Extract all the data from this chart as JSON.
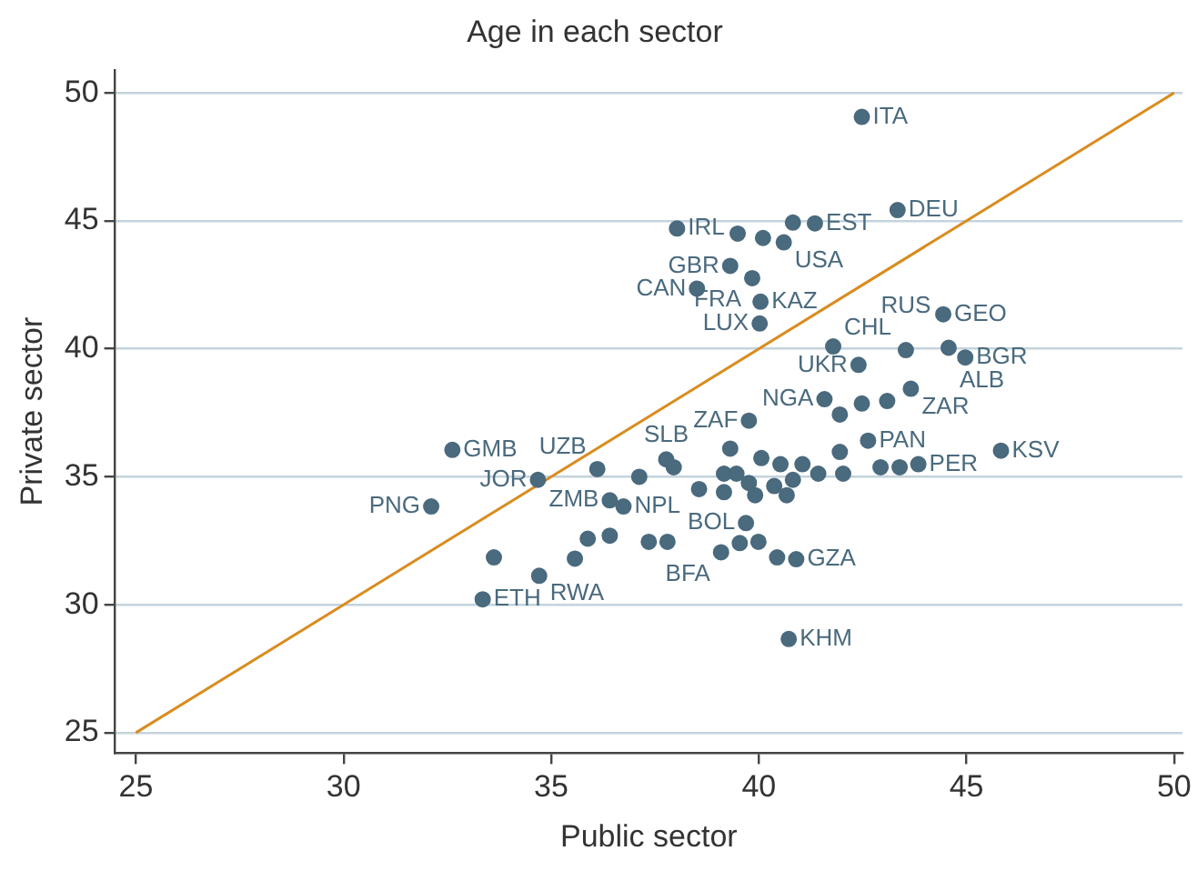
{
  "chart_data": {
    "type": "scatter",
    "title": "Age in each sector",
    "xlabel": "Public sector",
    "ylabel": "Private sector",
    "xlim": [
      24.5,
      50.2
    ],
    "ylim": [
      24.2,
      50.9
    ],
    "xticks": [
      25,
      30,
      35,
      40,
      45,
      50
    ],
    "yticks": [
      25,
      30,
      35,
      40,
      45,
      50
    ],
    "grid": "y",
    "marker": "circle",
    "series": [
      {
        "color": "#4a6a7e",
        "x": [
          42.48,
          43.34,
          38.03,
          39.49,
          40.1,
          40.6,
          40.82,
          41.35,
          39.31,
          38.51,
          39.84,
          40.04,
          40.02,
          41.79,
          42.4,
          44.44,
          43.54,
          44.57,
          44.97,
          43.66,
          41.58,
          41.95,
          42.48,
          43.09,
          39.76,
          42.63,
          45.83,
          32.62,
          32.11,
          34.68,
          36.11,
          36.41,
          36.74,
          33.62,
          34.71,
          33.35,
          35.57,
          35.88,
          36.41,
          37.77,
          37.12,
          37.95,
          38.56,
          39.16,
          39.31,
          37.35,
          37.8,
          39.09,
          39.69,
          39.54,
          39.99,
          40.44,
          40.9,
          40.72,
          40.06,
          40.52,
          41.05,
          41.95,
          41.43,
          42.03,
          42.93,
          43.39,
          43.84,
          39.46,
          39.76,
          40.37,
          40.82,
          39.16,
          39.91,
          40.67
        ],
        "values": [
          49.06,
          45.42,
          44.7,
          44.5,
          44.33,
          44.16,
          44.93,
          44.9,
          43.24,
          42.35,
          42.76,
          41.84,
          40.99,
          40.09,
          39.37,
          41.35,
          39.95,
          40.04,
          39.66,
          38.44,
          38.03,
          37.43,
          37.86,
          37.96,
          37.19,
          36.41,
          36.02,
          36.05,
          33.84,
          34.88,
          35.3,
          34.08,
          33.84,
          31.85,
          31.13,
          30.21,
          31.8,
          32.58,
          32.7,
          35.68,
          35.0,
          35.37,
          34.52,
          35.12,
          36.1,
          32.46,
          32.46,
          32.05,
          33.19,
          32.41,
          32.46,
          31.85,
          31.78,
          28.66,
          35.73,
          35.49,
          35.49,
          35.97,
          35.12,
          35.12,
          35.37,
          35.37,
          35.49,
          35.12,
          34.76,
          34.64,
          34.88,
          34.4,
          34.28,
          34.28
        ]
      },
      {
        "type": "line",
        "color": "#d98c1f",
        "x": [
          25,
          50
        ],
        "values": [
          25,
          50
        ],
        "marker": "none",
        "line_style": "solid"
      }
    ],
    "annotations": [
      {
        "text": "ITA",
        "x": 42.48,
        "y": 49.06
      },
      {
        "text": "DEU",
        "x": 43.34,
        "y": 45.42
      },
      {
        "text": "IRL",
        "x": 38.03,
        "y": 44.7
      },
      {
        "text": "EST",
        "x": 41.35,
        "y": 44.9
      },
      {
        "text": "USA",
        "x": 40.6,
        "y": 44.16
      },
      {
        "text": "GBR",
        "x": 39.31,
        "y": 43.24
      },
      {
        "text": "CAN",
        "x": 38.51,
        "y": 42.35
      },
      {
        "text": "FRA",
        "x": 39.84,
        "y": 42.76
      },
      {
        "text": "KAZ",
        "x": 40.04,
        "y": 41.84
      },
      {
        "text": "LUX",
        "x": 40.02,
        "y": 40.99
      },
      {
        "text": "CHL",
        "x": 41.79,
        "y": 40.09
      },
      {
        "text": "UKR",
        "x": 42.4,
        "y": 39.37
      },
      {
        "text": "GEO",
        "x": 44.44,
        "y": 41.35
      },
      {
        "text": "RUS",
        "x": 43.54,
        "y": 39.95
      },
      {
        "text": "ALB",
        "x": 44.57,
        "y": 40.04
      },
      {
        "text": "BGR",
        "x": 44.97,
        "y": 39.66
      },
      {
        "text": "ZAR",
        "x": 43.66,
        "y": 38.44
      },
      {
        "text": "NGA",
        "x": 41.58,
        "y": 38.03
      },
      {
        "text": "ZAF",
        "x": 39.76,
        "y": 37.19
      },
      {
        "text": "PAN",
        "x": 42.63,
        "y": 36.41
      },
      {
        "text": "KSV",
        "x": 45.83,
        "y": 36.02
      },
      {
        "text": "PER",
        "x": 43.84,
        "y": 35.49
      },
      {
        "text": "GMB",
        "x": 32.62,
        "y": 36.05
      },
      {
        "text": "PNG",
        "x": 32.11,
        "y": 33.84
      },
      {
        "text": "JOR",
        "x": 34.68,
        "y": 34.88
      },
      {
        "text": "UZB",
        "x": 36.11,
        "y": 35.3
      },
      {
        "text": "ZMB",
        "x": 36.41,
        "y": 34.08
      },
      {
        "text": "NPL",
        "x": 36.74,
        "y": 33.84
      },
      {
        "text": "SLB",
        "x": 37.77,
        "y": 35.68
      },
      {
        "text": "RWA",
        "x": 34.71,
        "y": 31.13
      },
      {
        "text": "ETH",
        "x": 33.35,
        "y": 30.21
      },
      {
        "text": "BOL",
        "x": 39.69,
        "y": 33.19
      },
      {
        "text": "BFA",
        "x": 39.09,
        "y": 32.05
      },
      {
        "text": "GZA",
        "x": 40.9,
        "y": 31.78
      },
      {
        "text": "KHM",
        "x": 40.72,
        "y": 28.66
      }
    ]
  }
}
